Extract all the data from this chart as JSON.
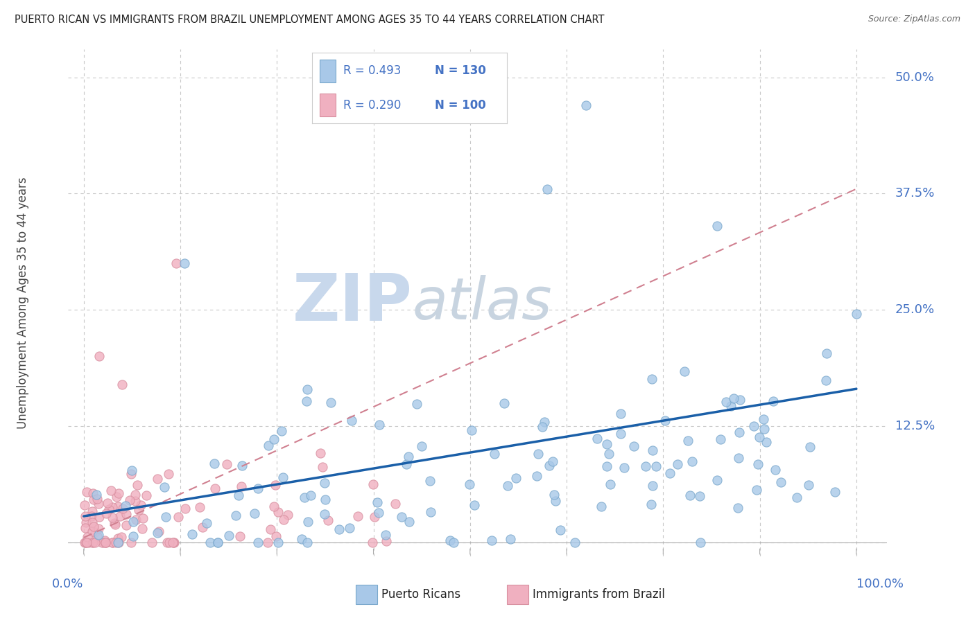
{
  "title": "PUERTO RICAN VS IMMIGRANTS FROM BRAZIL UNEMPLOYMENT AMONG AGES 35 TO 44 YEARS CORRELATION CHART",
  "source": "Source: ZipAtlas.com",
  "ylabel": "Unemployment Among Ages 35 to 44 years",
  "legend_blue_R": "R = 0.493",
  "legend_blue_N": "N = 130",
  "legend_pink_R": "R = 0.290",
  "legend_pink_N": "N = 100",
  "legend_label_blue": "Puerto Ricans",
  "legend_label_pink": "Immigrants from Brazil",
  "blue_color": "#a8c8e8",
  "pink_color": "#f0b0c0",
  "blue_line_color": "#1a5fa8",
  "pink_line_color": "#d08090",
  "grid_color": "#c8c8c8",
  "watermark": "ZIPatlas",
  "watermark_color_zip": "#c8d8e8",
  "watermark_color_atlas": "#c8d0dc",
  "title_color": "#222222",
  "source_color": "#666666",
  "axis_tick_color": "#4472c4",
  "ylabel_color": "#444444",
  "xlim": [
    0.0,
    1.0
  ],
  "ylim": [
    0.0,
    0.5
  ],
  "y_ticks": [
    0.0,
    0.125,
    0.25,
    0.375,
    0.5
  ],
  "y_tick_labels": [
    "",
    "12.5%",
    "25.0%",
    "37.5%",
    "50.0%"
  ],
  "x_tick_positions": [
    0.0,
    0.125,
    0.25,
    0.375,
    0.5,
    0.625,
    0.75,
    0.875,
    1.0
  ],
  "blue_trend_x": [
    0.0,
    1.0
  ],
  "blue_trend_y": [
    0.028,
    0.165
  ],
  "pink_trend_x": [
    0.0,
    1.0
  ],
  "pink_trend_y": [
    0.005,
    0.38
  ]
}
